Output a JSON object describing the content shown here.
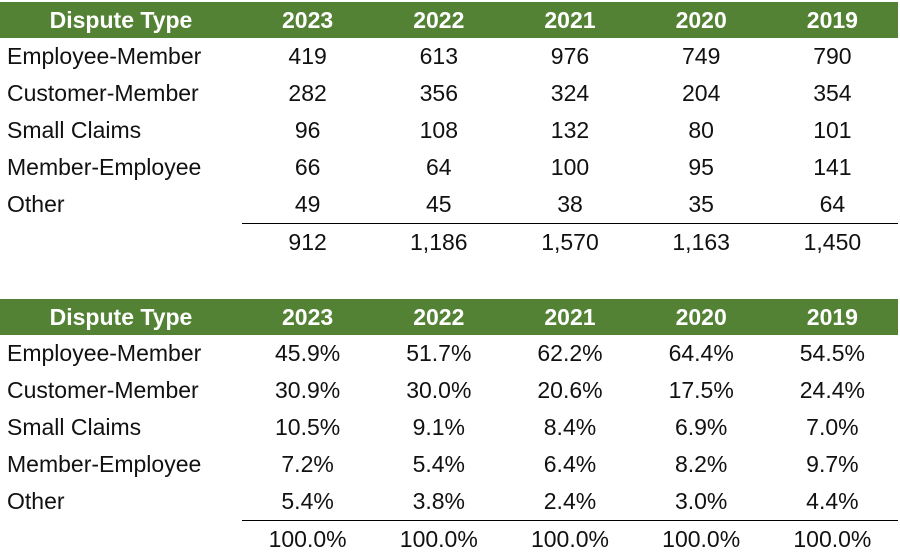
{
  "counts_table": {
    "header": [
      "Dispute Type",
      "2023",
      "2022",
      "2021",
      "2020",
      "2019"
    ],
    "rows": [
      {
        "label": "Employee-Member",
        "values": [
          "419",
          "613",
          "976",
          "749",
          "790"
        ]
      },
      {
        "label": "Customer-Member",
        "values": [
          "282",
          "356",
          "324",
          "204",
          "354"
        ]
      },
      {
        "label": "Small Claims",
        "values": [
          "96",
          "108",
          "132",
          "80",
          "101"
        ]
      },
      {
        "label": "Member-Employee",
        "values": [
          "66",
          "64",
          "100",
          "95",
          "141"
        ]
      },
      {
        "label": "Other",
        "values": [
          "49",
          "45",
          "38",
          "35",
          "64"
        ]
      }
    ],
    "totals": [
      "912",
      "1,186",
      "1,570",
      "1,163",
      "1,450"
    ]
  },
  "percent_table": {
    "header": [
      "Dispute Type",
      "2023",
      "2022",
      "2021",
      "2020",
      "2019"
    ],
    "rows": [
      {
        "label": "Employee-Member",
        "values": [
          "45.9%",
          "51.7%",
          "62.2%",
          "64.4%",
          "54.5%"
        ]
      },
      {
        "label": "Customer-Member",
        "values": [
          "30.9%",
          "30.0%",
          "20.6%",
          "17.5%",
          "24.4%"
        ]
      },
      {
        "label": "Small Claims",
        "values": [
          "10.5%",
          "9.1%",
          "8.4%",
          "6.9%",
          "7.0%"
        ]
      },
      {
        "label": "Member-Employee",
        "values": [
          "7.2%",
          "5.4%",
          "6.4%",
          "8.2%",
          "9.7%"
        ]
      },
      {
        "label": "Other",
        "values": [
          "5.4%",
          "3.8%",
          "2.4%",
          "3.0%",
          "4.4%"
        ]
      }
    ],
    "totals": [
      "100.0%",
      "100.0%",
      "100.0%",
      "100.0%",
      "100.0%"
    ]
  },
  "colors": {
    "header_bg": "#548235",
    "header_text": "#ffffff",
    "body_text": "#111111",
    "rule": "#000000"
  }
}
